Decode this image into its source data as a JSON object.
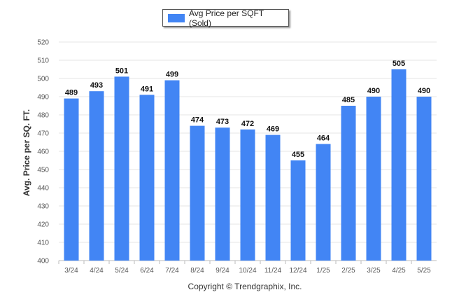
{
  "chart_data": {
    "type": "bar",
    "categories": [
      "3/24",
      "4/24",
      "5/24",
      "6/24",
      "7/24",
      "8/24",
      "9/24",
      "10/24",
      "11/24",
      "12/24",
      "1/25",
      "2/25",
      "3/25",
      "4/25",
      "5/25"
    ],
    "series": [
      {
        "name": "Avg Price per SQFT (Sold)",
        "values": [
          489,
          493,
          501,
          491,
          499,
          474,
          473,
          472,
          469,
          455,
          464,
          485,
          490,
          505,
          490
        ]
      }
    ],
    "ylabel": "Avg. Price per SQ. FT.",
    "xlabel": "",
    "ylim": [
      400,
      520
    ],
    "yticks": [
      400,
      410,
      420,
      430,
      440,
      450,
      460,
      470,
      480,
      490,
      500,
      510,
      520
    ],
    "grid": true,
    "legend_position": "top-center",
    "bar_color": "#4285f4"
  },
  "footer": {
    "copyright": "Copyright © Trendgraphix, Inc."
  }
}
